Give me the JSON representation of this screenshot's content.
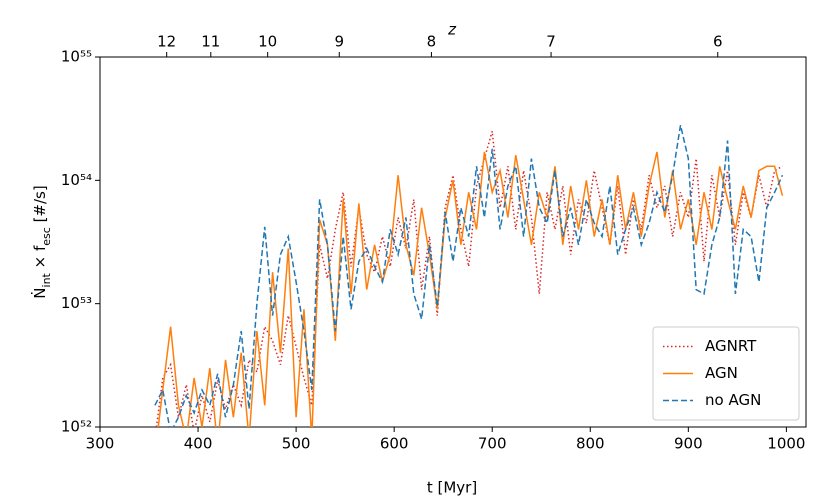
{
  "chart_data": {
    "type": "line",
    "xlabel": "t [Myr]",
    "ylabel": [
      {
        "text": "Ṅ"
      },
      {
        "text": "int",
        "sub": true
      },
      {
        "text": " × "
      },
      {
        "text": "f"
      },
      {
        "text": "esc",
        "sub": true
      },
      {
        "text": " [#/s]"
      }
    ],
    "x2label": "z",
    "xlim": [
      300,
      1020
    ],
    "xticks": [
      300,
      400,
      500,
      600,
      700,
      800,
      900,
      1000
    ],
    "x2ticks": [
      {
        "value": 368,
        "label": "12"
      },
      {
        "value": 413,
        "label": "11"
      },
      {
        "value": 471,
        "label": "10"
      },
      {
        "value": 544,
        "label": "9"
      },
      {
        "value": 638,
        "label": "8"
      },
      {
        "value": 760,
        "label": "7"
      },
      {
        "value": 930,
        "label": "6"
      }
    ],
    "ylim": [
      1e+52,
      1e+55
    ],
    "yscale": "log",
    "yticks": [
      {
        "value": 1e+52,
        "label": "10⁵²"
      },
      {
        "value": 1e+53,
        "label": "10⁵³"
      },
      {
        "value": 1e+54,
        "label": "10⁵⁴"
      },
      {
        "value": 1e+55,
        "label": "10⁵⁵"
      }
    ],
    "legend": "lower right",
    "x": [
      356,
      364,
      372,
      380,
      388,
      396,
      404,
      412,
      420,
      428,
      436,
      444,
      452,
      460,
      468,
      476,
      484,
      492,
      500,
      508,
      516,
      524,
      532,
      540,
      548,
      556,
      564,
      572,
      580,
      588,
      596,
      604,
      612,
      620,
      628,
      636,
      644,
      652,
      660,
      668,
      676,
      684,
      692,
      700,
      708,
      716,
      724,
      732,
      740,
      748,
      756,
      764,
      772,
      780,
      788,
      796,
      804,
      812,
      820,
      828,
      836,
      844,
      852,
      860,
      868,
      876,
      884,
      892,
      900,
      908,
      916,
      924,
      932,
      940,
      948,
      956,
      964,
      972,
      980,
      988,
      996
    ],
    "series": [
      {
        "name": "AGNRT",
        "color": "#d62728",
        "linestyle": "dotted",
        "values": [
          8e+51,
          2.5e+52,
          3.2e+52,
          1.2e+52,
          2.2e+52,
          9e+51,
          1.8e+52,
          1.1e+52,
          2.4e+52,
          1.4e+52,
          2.2e+52,
          1.5e+52,
          3.5e+52,
          2.8e+52,
          6.5e+52,
          5e+52,
          3.2e+52,
          8e+52,
          4.5e+52,
          2.5e+52,
          1.5e+52,
          3e+53,
          1.6e+53,
          4e+53,
          8e+53,
          2e+53,
          6e+53,
          2.5e+53,
          1.8e+53,
          3.5e+53,
          2e+53,
          5e+53,
          2.8e+53,
          7e+53,
          1.3e+53,
          3.5e+53,
          8e+52,
          6e+53,
          1.1e+54,
          4e+53,
          2e+53,
          9e+53,
          1.5e+54,
          2.5e+54,
          6e+53,
          1.3e+54,
          4e+53,
          1.2e+54,
          5e+53,
          1.2e+53,
          8e+53,
          4e+53,
          9e+53,
          2.5e+53,
          7e+53,
          4.5e+53,
          1.2e+54,
          6e+53,
          3e+53,
          9e+53,
          2.5e+53,
          7e+53,
          4e+53,
          1.1e+54,
          6e+53,
          9e+53,
          3.5e+53,
          8e+53,
          5e+53,
          1.5e+54,
          2.2e+53,
          1.1e+54,
          5e+53,
          1.2e+54,
          3e+53,
          8e+53,
          5e+53,
          1.1e+54,
          6e+53,
          1.2e+54,
          1.3e+54
        ]
      },
      {
        "name": "AGN",
        "color": "#ff7f0e",
        "linestyle": "solid",
        "values": [
          6e+51,
          2e+52,
          6.5e+52,
          1.5e+52,
          8e+51,
          2.5e+52,
          1e+52,
          3e+52,
          7e+51,
          3.5e+52,
          1.2e+52,
          4e+52,
          8e+51,
          6e+52,
          1.5e+52,
          1.8e+53,
          4e+52,
          2.8e+53,
          1.2e+52,
          9e+52,
          8e+51,
          4.8e+53,
          3e+53,
          5e+52,
          7e+53,
          1.2e+53,
          6.5e+53,
          1.3e+53,
          3e+53,
          1.5e+53,
          2.5e+53,
          1.1e+54,
          3e+53,
          1.7e+53,
          6e+53,
          2.5e+53,
          9e+52,
          5e+53,
          1e+54,
          3e+53,
          8e+53,
          4e+53,
          1.7e+54,
          8e+53,
          1.2e+54,
          5e+53,
          1.6e+54,
          7e+53,
          3e+53,
          8e+53,
          5e+53,
          1.3e+54,
          3e+53,
          9e+53,
          4e+53,
          1e+54,
          3.5e+53,
          7e+53,
          3e+53,
          1.1e+54,
          4e+53,
          8e+53,
          3.5e+53,
          9e+53,
          1.7e+54,
          5e+53,
          1.2e+54,
          4e+53,
          7e+53,
          3e+53,
          8e+53,
          4e+53,
          1.3e+54,
          7e+53,
          4e+53,
          9e+53,
          5e+53,
          1.2e+54,
          1.3e+54,
          1.3e+54,
          7.5e+53
        ]
      },
      {
        "name": "no AGN",
        "color": "#1f77b4",
        "linestyle": "dashed",
        "values": [
          1.5e+52,
          2e+52,
          9e+51,
          1.2e+52,
          1.8e+52,
          1.3e+52,
          2e+52,
          1.5e+52,
          2.7e+52,
          1.2e+52,
          2.2e+52,
          6e+52,
          1.4e+52,
          1e+53,
          4.2e+53,
          8e+52,
          2.5e+53,
          3.5e+53,
          1.5e+53,
          6e+52,
          2e+52,
          7e+53,
          3e+53,
          6e+52,
          3.5e+53,
          9e+52,
          2.2e+53,
          2.8e+53,
          2e+53,
          1.5e+53,
          4e+53,
          2.5e+53,
          5e+53,
          1.2e+53,
          7.5e+52,
          3e+53,
          9.5e+52,
          5.5e+53,
          2.2e+53,
          6e+53,
          3.5e+53,
          1.3e+54,
          5e+53,
          1.8e+54,
          4e+53,
          9e+53,
          1.3e+54,
          3.5e+53,
          1.5e+54,
          6e+53,
          4.5e+53,
          1.2e+54,
          3.5e+53,
          6e+53,
          3e+53,
          7e+53,
          4.5e+53,
          3.5e+53,
          9e+53,
          2.5e+53,
          4e+53,
          6e+53,
          3e+53,
          4.5e+53,
          8e+53,
          5.5e+53,
          1.1e+54,
          2.8e+54,
          1.5e+54,
          1.3e+53,
          1.2e+53,
          3e+53,
          5e+53,
          2.1e+54,
          1.2e+53,
          4e+53,
          3.5e+53,
          1.5e+53,
          6e+53,
          8e+53,
          1.1e+54
        ]
      }
    ]
  }
}
